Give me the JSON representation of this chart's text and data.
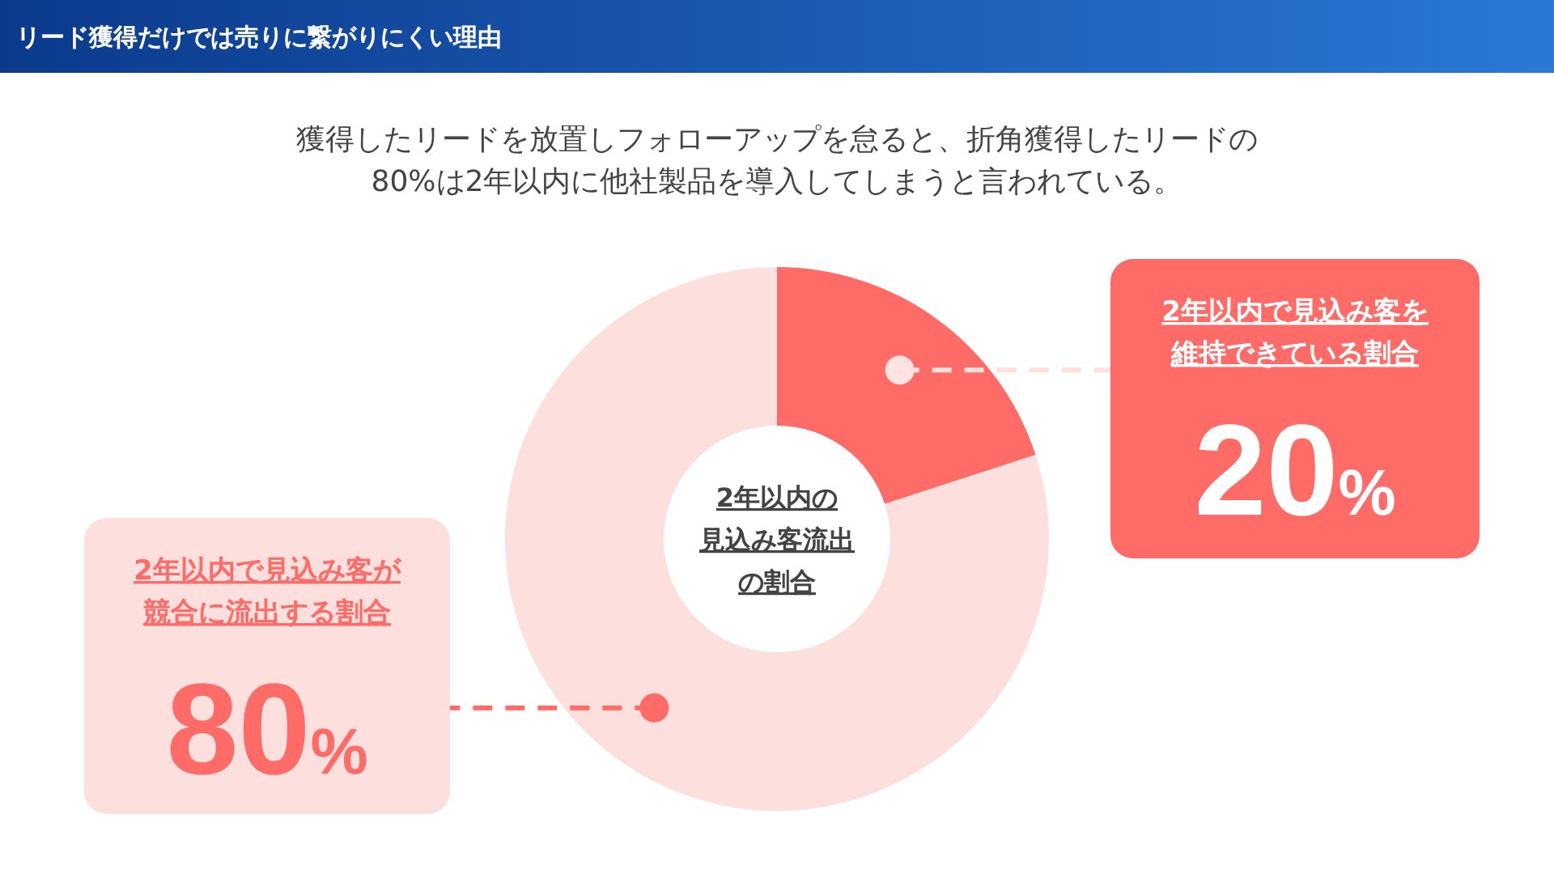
{
  "chart_data": {
    "type": "donut",
    "title": "リード獲得だけでは売りに繋がりにくい理由",
    "subtitle": "獲得したリードを放置しフォローアップを怠ると、折角獲得したリードの\n80%は2年以内に他社製品を導入してしまうと言われている。",
    "categories": [
      "2年以内で見込み客を維持できている割合",
      "2年以内で見込み客が競合に流出する割合"
    ],
    "values": [
      20,
      80
    ],
    "colors": [
      "#ff6b67",
      "#fde0de"
    ],
    "value_labels": [
      "20%",
      "80%"
    ],
    "annotations": [
      "2年以内の見込み客流出の割合"
    ]
  }
}
